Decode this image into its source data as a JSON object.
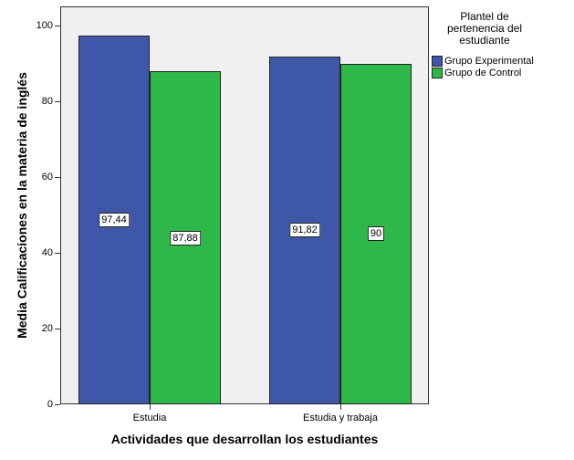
{
  "chart_data": {
    "type": "bar",
    "title": "",
    "xlabel": "Actividades que desarrollan los estudiantes",
    "ylabel": "Media Calificaciones en la materia de inglés",
    "categories": [
      "Estudia",
      "Estudia y trabaja"
    ],
    "series": [
      {
        "name": "Grupo Experimental",
        "color": "#3f57a8",
        "values": [
          97.44,
          91.82
        ],
        "labels": [
          "97,44",
          "91,82"
        ]
      },
      {
        "name": "Grupo de Control",
        "color": "#2eb84a",
        "values": [
          87.88,
          90
        ],
        "labels": [
          "87,88",
          "90"
        ]
      }
    ],
    "ylim": [
      0,
      105
    ],
    "yticks": [
      0,
      20,
      40,
      60,
      80,
      100
    ],
    "grid": false,
    "legend": {
      "title": "Plantel de pertenencia del estudiante",
      "position": "right"
    }
  },
  "legend_title_lines": [
    "Plantel de",
    "pertenencia del",
    "estudiante"
  ]
}
